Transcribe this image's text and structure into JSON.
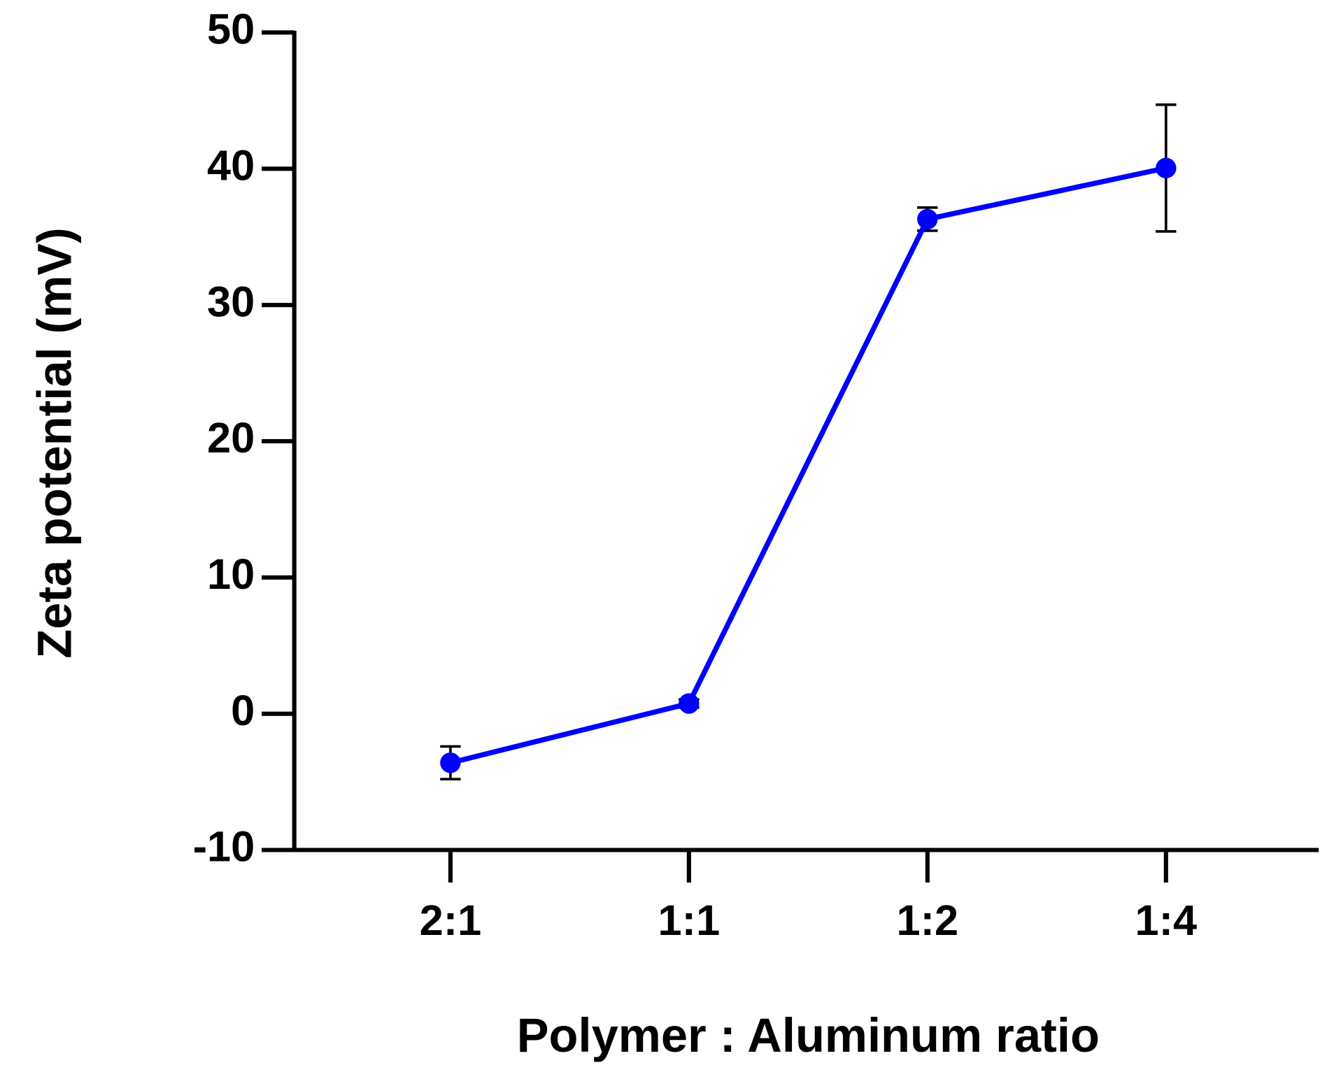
{
  "chart_data": {
    "type": "line",
    "x_label": "Polymer : Aluminum ratio",
    "y_label": "Zeta potential (mV)",
    "categories": [
      "2:1",
      "1:1",
      "1:2",
      "1:4"
    ],
    "series": [
      {
        "color": "#0000ff",
        "values": [
          -3.6,
          0.75,
          36.3,
          40.05
        ],
        "errors": [
          1.2,
          0.3,
          0.85,
          4.65
        ]
      }
    ],
    "ylim": [
      -10,
      50
    ],
    "yticks": [
      -10,
      0,
      10,
      20,
      30,
      40,
      50
    ]
  }
}
